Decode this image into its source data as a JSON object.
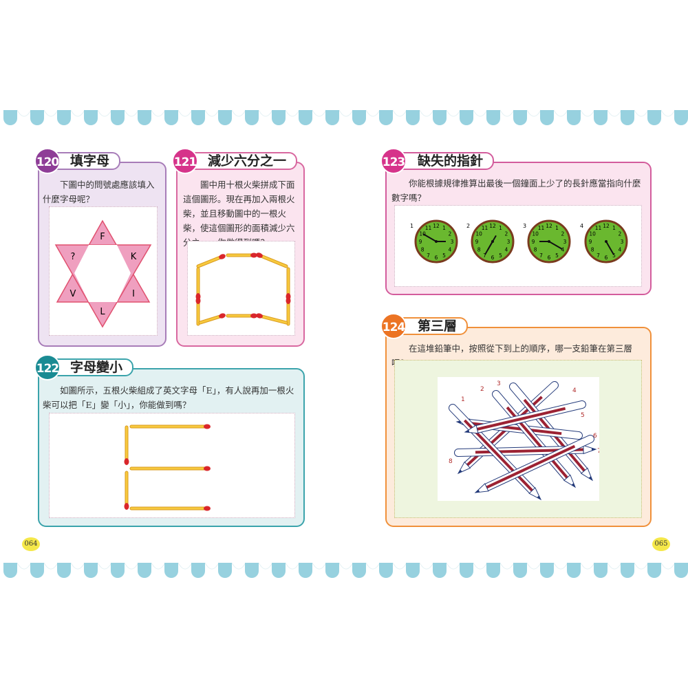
{
  "colors": {
    "scallop": "#97d1df",
    "purple": "#8e3d97",
    "pink": "#d6338a",
    "teal": "#1a8b93",
    "orange": "#ec7424",
    "clock_face": "#6ab82f",
    "clock_rim": "#7a3a1e",
    "match_head": "#d9262b",
    "match_body": "#f7c93e"
  },
  "puzzles": [
    {
      "number": "120",
      "title": "填字母",
      "question": "下圖中的問號處應該填入什麼字母呢？",
      "letters": [
        "F",
        "K",
        "I",
        "L",
        "V",
        "?"
      ]
    },
    {
      "number": "121",
      "title": "減少六分之一",
      "question": "圖中用十根火柴拼成下面這個圖形。現在再加入兩根火柴，並且移動圖中的一根火柴，使這個圖形的面積減少六分之一，你做得到嗎？"
    },
    {
      "number": "122",
      "title": "字母變小",
      "question": "如圖所示，五根火柴組成了英文字母「E」，有人說再加一根火柴可以把「E」變「小」，你能做到嗎？"
    },
    {
      "number": "123",
      "title": "缺失的指針",
      "question": "你能根據規律推算出最後一個鐘面上少了的長針應當指向什麼數字嗎？",
      "clock_labels": [
        "1",
        "2",
        "3",
        "4"
      ],
      "clock_numbers": [
        "12",
        "1",
        "2",
        "3",
        "4",
        "5",
        "6",
        "7",
        "8",
        "9",
        "10",
        "11"
      ]
    },
    {
      "number": "124",
      "title": "第三層",
      "question": "在這堆鉛筆中，按照從下到上的順序，哪一支鉛筆在第三層呢？",
      "pencil_labels": [
        "1",
        "2",
        "3",
        "4",
        "5",
        "6",
        "7",
        "8"
      ]
    }
  ],
  "page_numbers": {
    "left": "064",
    "right": "065"
  }
}
